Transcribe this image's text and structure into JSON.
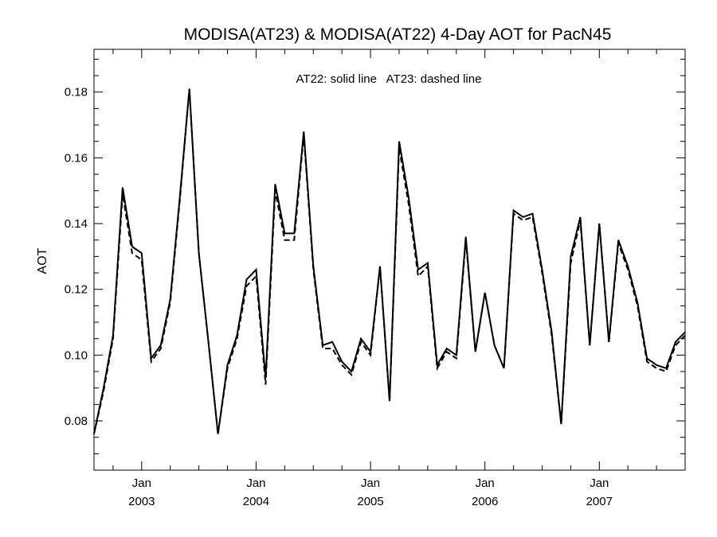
{
  "chart_data": {
    "type": "line",
    "title": "MODISA(AT23) & MODISA(AT22) 4-Day AOT for PacN45",
    "annotation": "AT22: solid line   AT23: dashed line",
    "xlabel": "",
    "ylabel": "AOT",
    "xlim": [
      "2002-08",
      "2007-10"
    ],
    "ylim": [
      0.065,
      0.193
    ],
    "y_ticks": [
      0.08,
      0.1,
      0.12,
      0.14,
      0.16,
      0.18
    ],
    "y_tick_labels": [
      "0.08",
      "0.10",
      "0.12",
      "0.14",
      "0.16",
      "0.18"
    ],
    "x_ticks": [
      {
        "month_label": "Jan",
        "year_label": "2003",
        "date": "2003-01"
      },
      {
        "month_label": "Jan",
        "year_label": "2004",
        "date": "2004-01"
      },
      {
        "month_label": "Jan",
        "year_label": "2005",
        "date": "2005-01"
      },
      {
        "month_label": "Jan",
        "year_label": "2006",
        "date": "2006-01"
      },
      {
        "month_label": "Jan",
        "year_label": "2007",
        "date": "2007-01"
      }
    ],
    "grid": false,
    "x": [
      "2002-08",
      "2002-09",
      "2002-10",
      "2002-11",
      "2002-12",
      "2003-01",
      "2003-02",
      "2003-03",
      "2003-04",
      "2003-05",
      "2003-06",
      "2003-07",
      "2003-08",
      "2003-09",
      "2003-10",
      "2003-11",
      "2003-12",
      "2004-01",
      "2004-02",
      "2004-03",
      "2004-04",
      "2004-05",
      "2004-06",
      "2004-07",
      "2004-08",
      "2004-09",
      "2004-10",
      "2004-11",
      "2004-12",
      "2005-01",
      "2005-02",
      "2005-03",
      "2005-04",
      "2005-05",
      "2005-06",
      "2005-07",
      "2005-08",
      "2005-09",
      "2005-10",
      "2005-11",
      "2005-12",
      "2006-01",
      "2006-02",
      "2006-03",
      "2006-04",
      "2006-05",
      "2006-06",
      "2006-07",
      "2006-08",
      "2006-09",
      "2006-10",
      "2006-11",
      "2006-12",
      "2007-01",
      "2007-02",
      "2007-03",
      "2007-04",
      "2007-05",
      "2007-06",
      "2007-07",
      "2007-08",
      "2007-09",
      "2007-10"
    ],
    "series": [
      {
        "name": "AT22",
        "style": "solid",
        "color": "#000000",
        "values": [
          0.076,
          0.09,
          0.106,
          0.151,
          0.133,
          0.131,
          0.099,
          0.103,
          0.117,
          0.148,
          0.181,
          0.131,
          0.104,
          0.076,
          0.097,
          0.106,
          0.123,
          0.126,
          0.093,
          0.152,
          0.137,
          0.137,
          0.168,
          0.127,
          0.103,
          0.104,
          0.098,
          0.095,
          0.105,
          0.101,
          0.127,
          0.086,
          0.165,
          0.148,
          0.126,
          0.128,
          0.097,
          0.102,
          0.1,
          0.136,
          0.101,
          0.119,
          0.103,
          0.096,
          0.144,
          0.142,
          0.143,
          0.126,
          0.107,
          0.079,
          0.13,
          0.142,
          0.103,
          0.14,
          0.104,
          0.135,
          0.127,
          0.116,
          0.099,
          0.097,
          0.096,
          0.104,
          0.107
        ]
      },
      {
        "name": "AT23",
        "style": "dashed",
        "color": "#000000",
        "values": [
          0.076,
          0.089,
          0.105,
          0.149,
          0.131,
          0.129,
          0.098,
          0.102,
          0.116,
          0.147,
          0.181,
          0.131,
          0.104,
          0.076,
          0.096,
          0.105,
          0.121,
          0.124,
          0.091,
          0.15,
          0.135,
          0.135,
          0.167,
          0.126,
          0.102,
          0.102,
          0.097,
          0.094,
          0.104,
          0.1,
          0.127,
          0.086,
          0.163,
          0.146,
          0.124,
          0.127,
          0.096,
          0.101,
          0.099,
          0.135,
          0.101,
          0.119,
          0.103,
          0.096,
          0.143,
          0.141,
          0.142,
          0.125,
          0.106,
          0.079,
          0.128,
          0.141,
          0.103,
          0.14,
          0.104,
          0.134,
          0.126,
          0.115,
          0.098,
          0.096,
          0.095,
          0.103,
          0.106
        ]
      }
    ]
  }
}
